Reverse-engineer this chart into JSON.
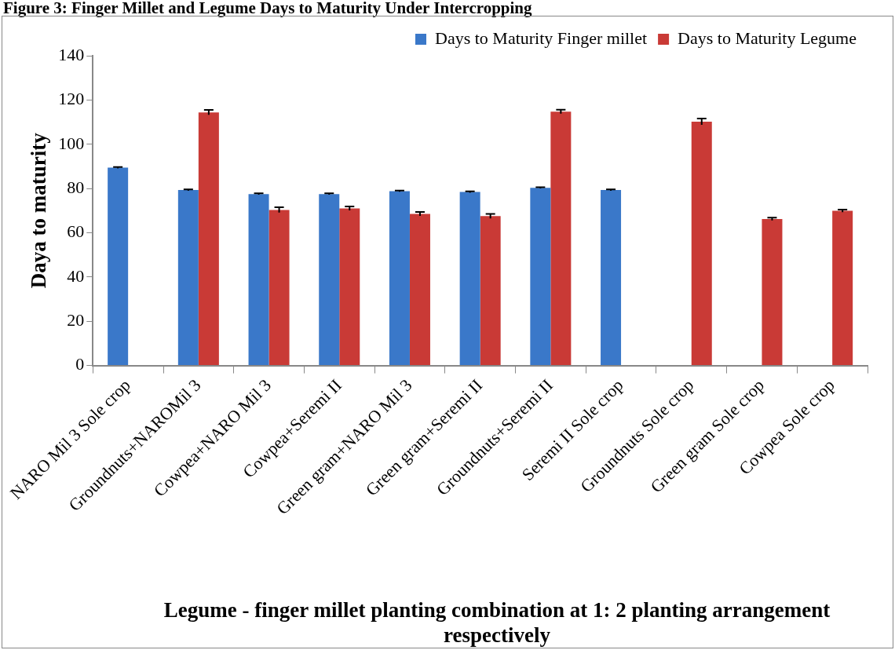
{
  "chart_data": {
    "type": "bar",
    "title": "Figure 3: Finger Millet and Legume Days to Maturity Under Intercropping",
    "xlabel": "Legume - finger millet planting combination at 1: 2 planting arrangement respectively",
    "ylabel": "Daya to maturity",
    "categories": [
      "NARO Mil 3 Sole crop",
      "Groundnuts+NAROMil 3",
      "Cowpea+NARO Mil 3",
      "Cowpea+Seremi II",
      "Green gram+NARO Mil 3",
      "Green gram+Seremi II",
      "Groundnuts+Seremi II",
      "Seremi II Sole crop",
      "Groundnuts Sole crop",
      "Green gram Sole crop",
      "Cowpea Sole crop"
    ],
    "series": [
      {
        "name": "Days to Maturity Finger millet",
        "color": "#3a78c9",
        "values": [
          89.4,
          79.3,
          77.5,
          77.5,
          78.8,
          78.4,
          80.3,
          79.3,
          null,
          null,
          null
        ],
        "errors": [
          0.3,
          0.3,
          0.3,
          0.3,
          0.3,
          0.3,
          0.3,
          0.3,
          null,
          null,
          null
        ]
      },
      {
        "name": "Days to Maturity Legume",
        "color": "#c93a36",
        "values": [
          null,
          114.4,
          70.3,
          71.0,
          68.5,
          67.5,
          114.7,
          null,
          110.2,
          66.2,
          69.9
        ],
        "errors": [
          null,
          1.1,
          1.2,
          0.9,
          0.9,
          1.0,
          0.9,
          null,
          1.4,
          0.6,
          0.6
        ]
      }
    ],
    "ylim": [
      0,
      140
    ],
    "yticks": [
      0,
      20,
      40,
      60,
      80,
      100,
      120,
      140
    ],
    "grid": false,
    "legend": "top right"
  }
}
